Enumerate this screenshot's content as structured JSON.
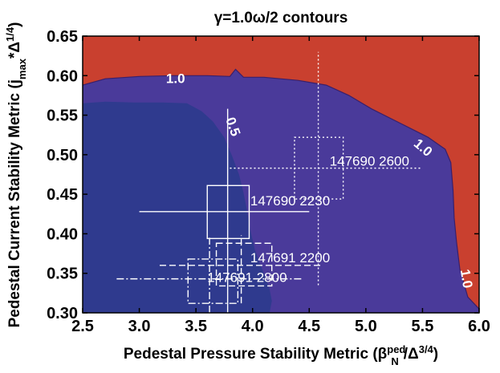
{
  "chart_data": {
    "type": "contour",
    "title": "γ=1.0ω/2 contours",
    "xlabel": "Pedestal Pressure Stability Metric (β",
    "xlabel_sup": "ped",
    "xlabel_sub": "N",
    "xlabel_tail": "/Δ",
    "xlabel_tail_sup": "3/4",
    "xlabel_close": ")",
    "ylabel": "Pedestal Current Stability Metric (j",
    "ylabel_sub": "max",
    "ylabel_tail": "*Δ",
    "ylabel_tail_sup": "1/4",
    "ylabel_close": ")",
    "xlim": [
      2.5,
      6.0
    ],
    "ylim": [
      0.3,
      0.65
    ],
    "x_ticks": [
      "2.5",
      "3.0",
      "3.5",
      "4.0",
      "4.5",
      "5.0",
      "5.5",
      "6.0"
    ],
    "y_ticks": [
      "0.30",
      "0.35",
      "0.40",
      "0.45",
      "0.50",
      "0.55",
      "0.60",
      "0.65"
    ],
    "colors": {
      "unstable": "#c9402f",
      "mid": "#4a3a9a",
      "stable": "#2f3a8e",
      "line": "#ffffff"
    },
    "contours": [
      {
        "level": "1.0",
        "label_positions": [
          [
            3.32,
            0.595,
            0
          ],
          [
            5.5,
            0.508,
            40
          ],
          [
            5.88,
            0.343,
            80
          ]
        ],
        "boundary": [
          [
            2.5,
            0.588
          ],
          [
            2.7,
            0.596
          ],
          [
            3.0,
            0.599
          ],
          [
            3.3,
            0.6
          ],
          [
            3.6,
            0.6
          ],
          [
            3.8,
            0.599
          ],
          [
            3.85,
            0.608
          ],
          [
            3.92,
            0.598
          ],
          [
            4.1,
            0.598
          ],
          [
            4.4,
            0.594
          ],
          [
            4.65,
            0.588
          ],
          [
            4.85,
            0.575
          ],
          [
            5.05,
            0.558
          ],
          [
            5.3,
            0.54
          ],
          [
            5.55,
            0.522
          ],
          [
            5.7,
            0.507
          ],
          [
            5.75,
            0.49
          ],
          [
            5.77,
            0.455
          ],
          [
            5.78,
            0.42
          ],
          [
            5.8,
            0.39
          ],
          [
            5.83,
            0.355
          ],
          [
            5.9,
            0.32
          ],
          [
            6.0,
            0.305
          ]
        ]
      },
      {
        "level": "0.5",
        "label_positions": [
          [
            3.82,
            0.535,
            70
          ]
        ],
        "boundary": [
          [
            2.5,
            0.565
          ],
          [
            2.7,
            0.567
          ],
          [
            2.95,
            0.566
          ],
          [
            3.2,
            0.566
          ],
          [
            3.42,
            0.565
          ],
          [
            3.55,
            0.555
          ],
          [
            3.65,
            0.542
          ],
          [
            3.75,
            0.522
          ],
          [
            3.82,
            0.498
          ],
          [
            3.88,
            0.475
          ],
          [
            3.92,
            0.452
          ],
          [
            3.95,
            0.43
          ],
          [
            3.98,
            0.405
          ],
          [
            4.02,
            0.38
          ],
          [
            4.07,
            0.36
          ],
          [
            4.12,
            0.343
          ],
          [
            4.15,
            0.33
          ],
          [
            4.17,
            0.315
          ],
          [
            4.15,
            0.3
          ]
        ]
      }
    ],
    "cases": [
      {
        "label": "147690 2600",
        "label_pos": [
          4.68,
          0.486
        ],
        "style": "dotted",
        "cx": 4.58,
        "cy": 0.483,
        "xerr_lo": 3.8,
        "xerr_hi": 5.5,
        "yerr_lo": 0.335,
        "yerr_hi": 0.63,
        "box": [
          4.37,
          0.444,
          4.8,
          0.522
        ]
      },
      {
        "label": "147690 2230",
        "label_pos": [
          3.98,
          0.436
        ],
        "style": "solid",
        "cx": 3.78,
        "cy": 0.428,
        "xerr_lo": 3.0,
        "xerr_hi": 4.5,
        "yerr_lo": 0.3,
        "yerr_hi": 0.558,
        "box": [
          3.6,
          0.394,
          3.97,
          0.461
        ]
      },
      {
        "label": "147691 2200",
        "label_pos": [
          3.98,
          0.364
        ],
        "style": "dashed",
        "cx": 3.9,
        "cy": 0.36,
        "xerr_lo": 3.18,
        "xerr_hi": 4.62,
        "yerr_lo": 0.312,
        "yerr_hi": 0.398,
        "box": [
          3.68,
          0.334,
          4.17,
          0.388
        ]
      },
      {
        "label": "147691 2800",
        "label_pos": [
          3.6,
          0.339
        ],
        "style": "dashdot",
        "cx": 3.62,
        "cy": 0.343,
        "xerr_lo": 2.8,
        "xerr_hi": 4.43,
        "yerr_lo": 0.3,
        "yerr_hi": 0.395,
        "box": [
          3.43,
          0.312,
          3.87,
          0.368
        ]
      }
    ]
  }
}
